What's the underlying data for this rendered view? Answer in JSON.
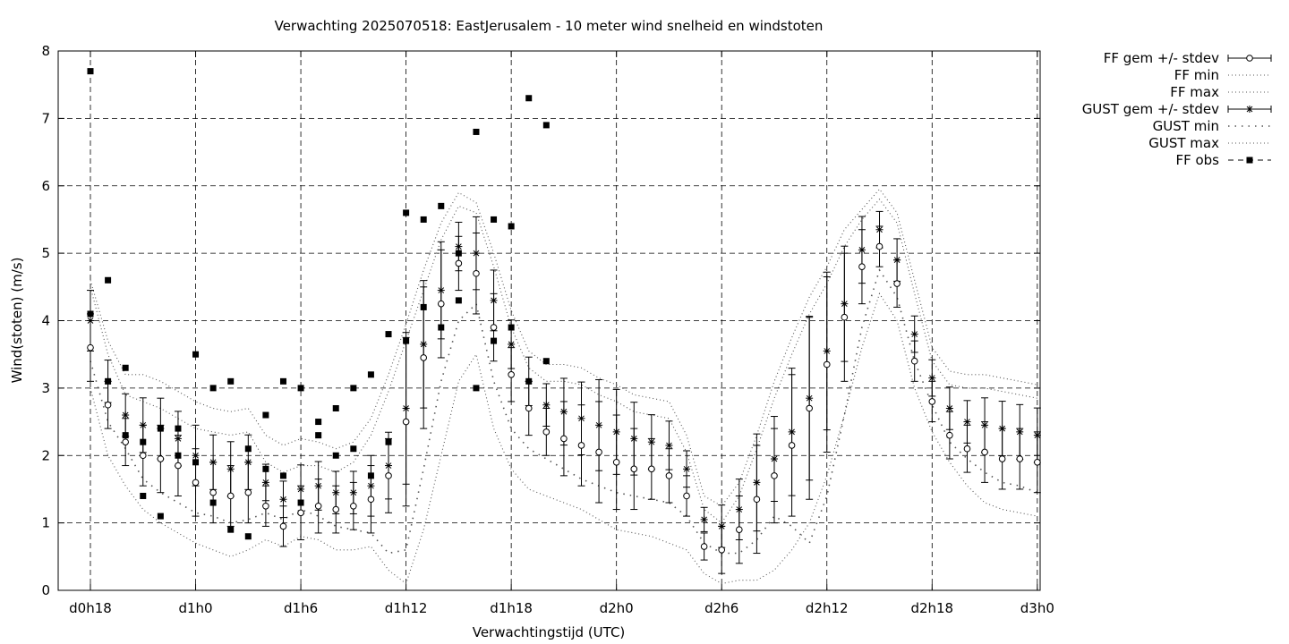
{
  "chart_data": {
    "type": "line",
    "title": "Verwachting 2025070518: EastJerusalem - 10 meter wind snelheid en windstoten",
    "xlabel": "Verwachtingstijd (UTC)",
    "ylabel": "Wind(stoten) (m/s)",
    "xlim": [
      18,
      74
    ],
    "ylim": [
      0,
      8
    ],
    "x_ticks": [
      {
        "x": 18,
        "label": "d0h18"
      },
      {
        "x": 24,
        "label": "d1h0"
      },
      {
        "x": 30,
        "label": "d1h6"
      },
      {
        "x": 36,
        "label": "d1h12"
      },
      {
        "x": 42,
        "label": "d1h18"
      },
      {
        "x": 48,
        "label": "d2h0"
      },
      {
        "x": 54,
        "label": "d2h6"
      },
      {
        "x": 60,
        "label": "d2h12"
      },
      {
        "x": 66,
        "label": "d2h18"
      },
      {
        "x": 72,
        "label": "d3h0"
      }
    ],
    "y_ticks": [
      "0",
      "1",
      "2",
      "3",
      "4",
      "5",
      "6",
      "7",
      "8"
    ],
    "grid": true,
    "legend_position": "outside-top-right",
    "series": [
      {
        "name": "FF gem +/- stdev",
        "style": "errorbar-open-circle",
        "x": [
          18,
          19,
          20,
          21,
          22,
          23,
          24,
          25,
          26,
          27,
          28,
          29,
          30,
          31,
          32,
          33,
          34,
          35,
          36,
          37,
          38,
          39,
          40,
          41,
          42,
          43,
          44,
          45,
          46,
          47,
          48,
          49,
          50,
          51,
          52,
          53,
          54,
          55,
          56,
          57,
          58,
          59,
          60,
          61,
          62,
          63,
          64,
          65,
          66,
          67,
          68,
          69,
          70,
          71,
          72
        ],
        "mean": [
          3.6,
          2.75,
          2.2,
          2.0,
          1.95,
          1.85,
          1.6,
          1.45,
          1.4,
          1.45,
          1.25,
          0.95,
          1.15,
          1.25,
          1.2,
          1.25,
          1.35,
          1.7,
          2.5,
          3.45,
          4.25,
          4.85,
          4.7,
          3.9,
          3.2,
          2.7,
          2.35,
          2.25,
          2.15,
          2.05,
          1.9,
          1.8,
          1.8,
          1.7,
          1.4,
          0.65,
          0.6,
          0.9,
          1.35,
          1.7,
          2.15,
          2.7,
          3.35,
          4.05,
          4.8,
          5.1,
          4.55,
          3.4,
          2.8,
          2.3,
          2.1,
          2.05,
          1.95,
          1.95,
          1.9
        ],
        "stdev": [
          0.5,
          0.35,
          0.35,
          0.45,
          0.5,
          0.45,
          0.5,
          0.45,
          0.45,
          0.45,
          0.3,
          0.3,
          0.4,
          0.4,
          0.35,
          0.35,
          0.5,
          0.55,
          1.25,
          1.05,
          0.8,
          0.4,
          0.6,
          0.5,
          0.4,
          0.4,
          0.35,
          0.55,
          0.6,
          0.75,
          0.7,
          0.6,
          0.45,
          0.4,
          0.3,
          0.2,
          0.35,
          0.5,
          0.8,
          0.7,
          1.05,
          1.35,
          1.3,
          0.95,
          0.55,
          0.3,
          0.35,
          0.3,
          0.3,
          0.35,
          0.35,
          0.45,
          0.45,
          0.45,
          0.45
        ]
      },
      {
        "name": "FF min",
        "style": "dotted-line",
        "x": [
          18,
          19,
          20,
          21,
          22,
          23,
          24,
          25,
          26,
          27,
          28,
          29,
          30,
          31,
          32,
          33,
          34,
          35,
          36,
          37,
          38,
          39,
          40,
          41,
          42,
          43,
          44,
          45,
          46,
          47,
          48,
          49,
          50,
          51,
          52,
          53,
          54,
          55,
          56,
          57,
          58,
          59,
          60,
          61,
          62,
          63,
          64,
          65,
          66,
          67,
          68,
          69,
          70,
          71,
          72
        ],
        "values": [
          3.0,
          2.0,
          1.55,
          1.2,
          1.0,
          0.85,
          0.7,
          0.6,
          0.5,
          0.6,
          0.75,
          0.65,
          0.8,
          0.75,
          0.6,
          0.6,
          0.65,
          0.3,
          0.1,
          0.9,
          2.0,
          3.1,
          3.5,
          2.4,
          1.8,
          1.5,
          1.4,
          1.3,
          1.2,
          1.05,
          0.9,
          0.85,
          0.8,
          0.7,
          0.6,
          0.25,
          0.1,
          0.15,
          0.15,
          0.3,
          0.6,
          1.0,
          1.7,
          2.6,
          3.6,
          4.4,
          4.0,
          3.0,
          2.35,
          1.9,
          1.55,
          1.3,
          1.2,
          1.15,
          1.1
        ]
      },
      {
        "name": "FF max",
        "style": "dotted-line",
        "x": [
          18,
          19,
          20,
          21,
          22,
          23,
          24,
          25,
          26,
          27,
          28,
          29,
          30,
          31,
          32,
          33,
          34,
          35,
          36,
          37,
          38,
          39,
          40,
          41,
          42,
          43,
          44,
          45,
          46,
          47,
          48,
          49,
          50,
          51,
          52,
          53,
          54,
          55,
          56,
          57,
          58,
          59,
          60,
          61,
          62,
          63,
          64,
          65,
          66,
          67,
          68,
          69,
          70,
          71,
          72
        ],
        "values": [
          4.5,
          3.5,
          2.9,
          2.8,
          2.7,
          2.55,
          2.4,
          2.35,
          2.3,
          2.35,
          1.9,
          1.75,
          1.85,
          1.85,
          1.75,
          1.9,
          2.3,
          2.95,
          3.7,
          4.45,
          5.2,
          5.7,
          5.6,
          4.8,
          3.9,
          3.3,
          3.1,
          3.1,
          3.05,
          2.9,
          2.8,
          2.65,
          2.6,
          2.55,
          2.05,
          1.2,
          1.0,
          1.4,
          2.1,
          2.85,
          3.5,
          4.1,
          4.55,
          5.1,
          5.5,
          5.8,
          5.45,
          4.4,
          3.4,
          3.05,
          3.0,
          3.0,
          2.95,
          2.9,
          2.85
        ]
      },
      {
        "name": "GUST gem +/- stdev",
        "style": "errorbar-star",
        "x": [
          18,
          19,
          20,
          21,
          22,
          23,
          24,
          25,
          26,
          27,
          28,
          29,
          30,
          31,
          32,
          33,
          34,
          35,
          36,
          37,
          38,
          39,
          40,
          41,
          42,
          43,
          44,
          45,
          46,
          47,
          48,
          49,
          50,
          51,
          52,
          53,
          54,
          55,
          56,
          57,
          58,
          59,
          60,
          61,
          62,
          63,
          64,
          65,
          66,
          67,
          68,
          69,
          70,
          71,
          72
        ],
        "mean": [
          4.0,
          3.1,
          2.6,
          2.45,
          2.4,
          2.25,
          2.0,
          1.9,
          1.8,
          1.9,
          1.6,
          1.35,
          1.5,
          1.55,
          1.45,
          1.45,
          1.55,
          1.85,
          2.7,
          3.65,
          4.45,
          5.1,
          5.0,
          4.3,
          3.65,
          3.1,
          2.75,
          2.65,
          2.55,
          2.45,
          2.35,
          2.25,
          2.2,
          2.15,
          1.8,
          1.05,
          0.95,
          1.2,
          1.6,
          1.95,
          2.35,
          2.85,
          3.55,
          4.25,
          5.05,
          5.35,
          4.9,
          3.8,
          3.15,
          2.7,
          2.5,
          2.45,
          2.4,
          2.35,
          2.3
        ]
      },
      {
        "name": "GUST min",
        "style": "sparse-dotted-line",
        "x": [
          18,
          19,
          20,
          21,
          22,
          23,
          24,
          25,
          26,
          27,
          28,
          29,
          30,
          31,
          32,
          33,
          34,
          35,
          36,
          37,
          38,
          39,
          40,
          41,
          42,
          43,
          44,
          45,
          46,
          47,
          48,
          49,
          50,
          51,
          52,
          53,
          54,
          55,
          56,
          57,
          58,
          59,
          60,
          61,
          62,
          63,
          64,
          65,
          66,
          67,
          68,
          69,
          70,
          71,
          72
        ],
        "values": [
          3.4,
          2.5,
          2.1,
          1.65,
          1.45,
          1.3,
          1.15,
          1.1,
          1.0,
          1.05,
          1.15,
          1.05,
          1.2,
          1.1,
          0.95,
          0.9,
          0.85,
          0.55,
          0.6,
          1.8,
          3.1,
          4.0,
          4.25,
          3.1,
          2.4,
          2.1,
          1.95,
          1.8,
          1.65,
          1.55,
          1.45,
          1.4,
          1.35,
          1.3,
          1.1,
          0.7,
          0.55,
          0.55,
          0.75,
          1.1,
          0.95,
          0.7,
          1.4,
          2.6,
          3.9,
          4.75,
          4.35,
          3.4,
          2.75,
          2.2,
          1.95,
          1.75,
          1.6,
          1.55,
          1.45
        ]
      },
      {
        "name": "GUST max",
        "style": "dotted-line",
        "x": [
          18,
          19,
          20,
          21,
          22,
          23,
          24,
          25,
          26,
          27,
          28,
          29,
          30,
          31,
          32,
          33,
          34,
          35,
          36,
          37,
          38,
          39,
          40,
          41,
          42,
          43,
          44,
          45,
          46,
          47,
          48,
          49,
          50,
          51,
          52,
          53,
          54,
          55,
          56,
          57,
          58,
          59,
          60,
          61,
          62,
          63,
          64,
          65,
          66,
          67,
          68,
          69,
          70,
          71,
          72
        ],
        "values": [
          4.6,
          3.7,
          3.2,
          3.2,
          3.1,
          2.95,
          2.8,
          2.7,
          2.65,
          2.7,
          2.3,
          2.15,
          2.25,
          2.2,
          2.1,
          2.2,
          2.55,
          3.2,
          3.95,
          4.75,
          5.45,
          5.9,
          5.75,
          5.0,
          4.15,
          3.55,
          3.35,
          3.35,
          3.3,
          3.15,
          3.05,
          2.9,
          2.85,
          2.8,
          2.3,
          1.4,
          1.25,
          1.6,
          2.3,
          3.1,
          3.75,
          4.35,
          4.8,
          5.35,
          5.65,
          5.95,
          5.6,
          4.6,
          3.6,
          3.25,
          3.2,
          3.2,
          3.15,
          3.1,
          3.05
        ]
      },
      {
        "name": "FF obs",
        "style": "filled-square-points",
        "x": [
          18,
          18,
          19,
          19,
          20,
          20,
          21,
          21,
          22,
          22,
          23,
          23,
          24,
          24,
          25,
          25,
          26,
          26,
          27,
          27,
          28,
          28,
          29,
          29,
          30,
          30,
          31,
          31,
          32,
          32,
          33,
          33,
          34,
          34,
          35,
          35,
          36,
          36,
          37,
          37,
          38,
          38,
          39,
          39,
          40,
          40,
          41,
          41,
          42,
          42,
          43,
          43,
          44
        ],
        "values": [
          7.7,
          4.1,
          4.6,
          3.1,
          3.3,
          2.3,
          2.2,
          1.4,
          2.4,
          1.1,
          2.4,
          2.0,
          3.5,
          1.9,
          3.0,
          1.3,
          3.1,
          0.9,
          2.1,
          0.8,
          2.6,
          1.8,
          3.1,
          1.7,
          3.0,
          1.3,
          2.5,
          2.3,
          2.7,
          2.0,
          3.0,
          2.1,
          3.2,
          1.7,
          3.8,
          2.2,
          5.6,
          3.7,
          5.5,
          4.2,
          5.7,
          3.9,
          5.0,
          4.3,
          6.8,
          3.0,
          5.5,
          3.7,
          5.4,
          3.9,
          7.3,
          3.1,
          6.9
        ]
      }
    ],
    "extra_obs": {
      "x": [
        44
      ],
      "values": [
        3.4
      ]
    }
  },
  "legend": [
    {
      "label": "FF gem +/- stdev",
      "icon": "errorbar-circle-icon"
    },
    {
      "label": "FF min",
      "icon": "dotted-line-icon"
    },
    {
      "label": "FF max",
      "icon": "dotted-line-icon"
    },
    {
      "label": "GUST gem +/- stdev",
      "icon": "errorbar-star-icon"
    },
    {
      "label": "GUST min",
      "icon": "sparse-dotted-line-icon"
    },
    {
      "label": "GUST max",
      "icon": "dotted-line-icon"
    },
    {
      "label": "FF obs",
      "icon": "square-dashed-line-icon"
    }
  ]
}
